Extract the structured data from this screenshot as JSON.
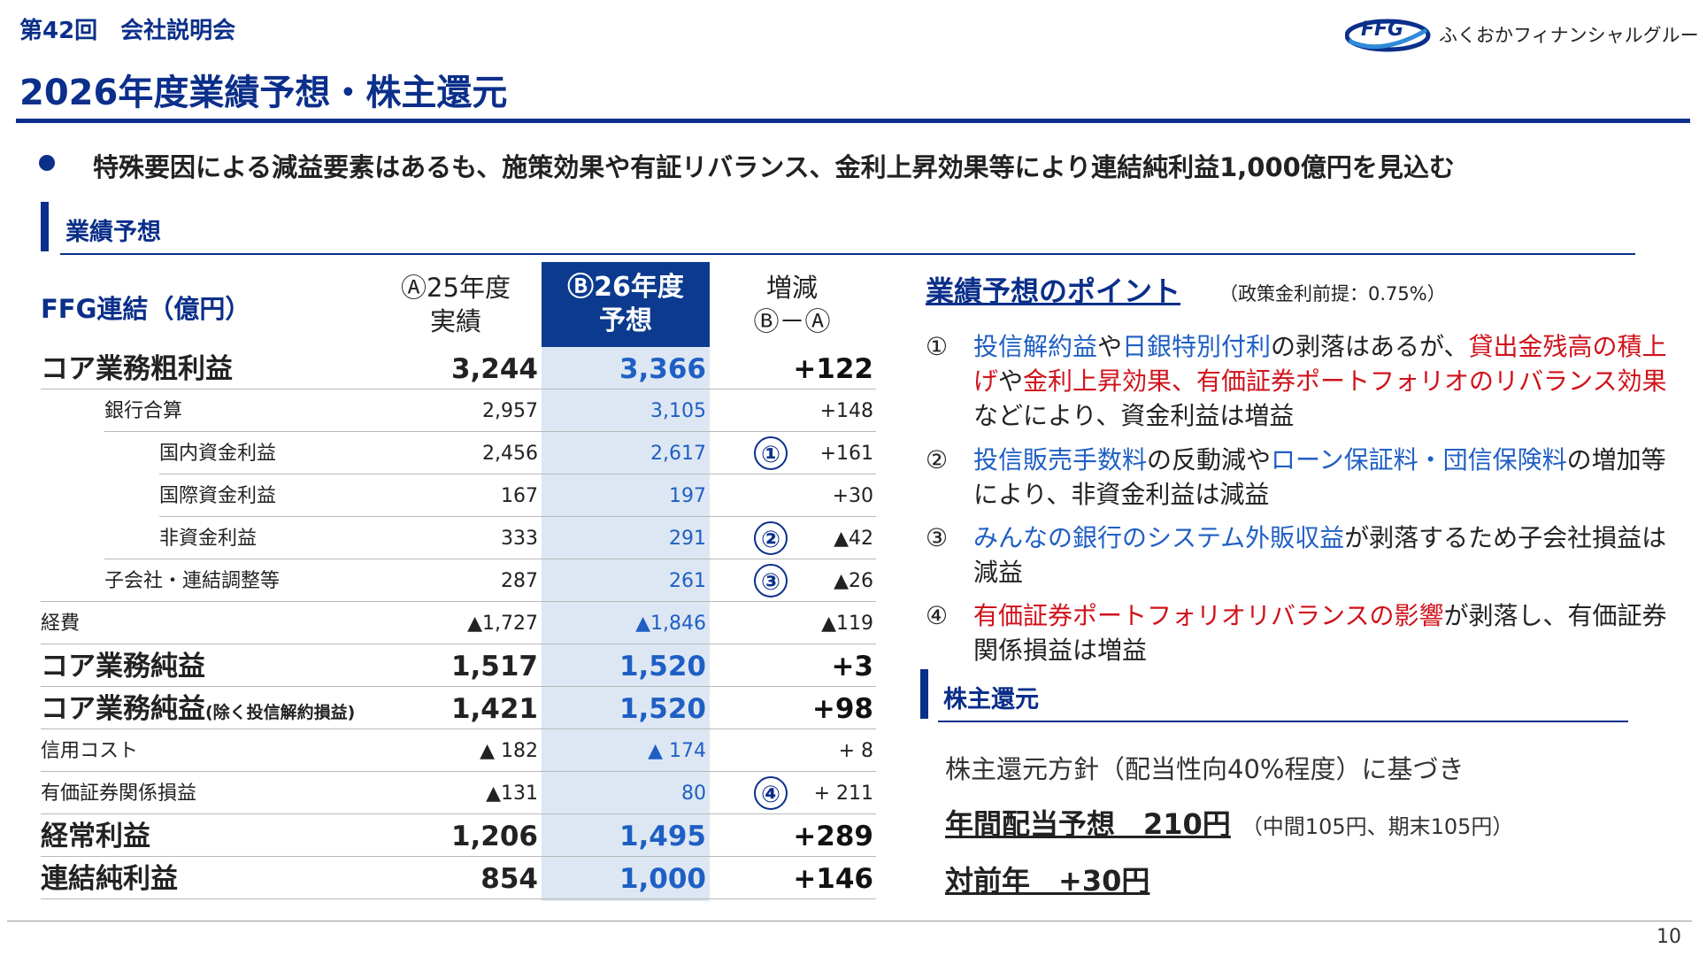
{
  "header": {
    "session": "第42回　会社説明会",
    "logo_text": "ふくおかフィナンシャルグループ",
    "logo_mark": "FFG",
    "title": "2026年度業績予想・株主還元"
  },
  "bullet": "特殊要因による減益要素はあるも、施策効果や有証リバランス、金利上昇効果等により連結純利益1,000億円を見込む",
  "forecast_section": {
    "title": "業績予想"
  },
  "table": {
    "unit_label": "FFG連結（億円）",
    "col_a": [
      "Ⓐ25年度",
      "実績"
    ],
    "col_b": [
      "Ⓑ26年度",
      "予想"
    ],
    "col_c": [
      "増減",
      "Ⓑ－Ⓐ"
    ],
    "rows": [
      {
        "label": "コア業務粗利益",
        "a": "3,244",
        "b": "3,366",
        "c": "+122"
      },
      {
        "label": "銀行合算",
        "a": "2,957",
        "b": "3,105",
        "c": "+148"
      },
      {
        "label": "国内資金利益",
        "a": "2,456",
        "b": "2,617",
        "c": "+161",
        "mark": "①"
      },
      {
        "label": "国際資金利益",
        "a": "167",
        "b": "197",
        "c": "+30"
      },
      {
        "label": "非資金利益",
        "a": "333",
        "b": "291",
        "c": "▲42",
        "mark": "②"
      },
      {
        "label": "子会社・連結調整等",
        "a": "287",
        "b": "261",
        "c": "▲26",
        "mark": "③"
      },
      {
        "label": "経費",
        "a": "▲1,727",
        "b": "▲1,846",
        "c": "▲119"
      },
      {
        "label": "コア業務純益",
        "a": "1,517",
        "b": "1,520",
        "c": "+3"
      },
      {
        "label": "コア業務純益",
        "label_note": "(除く投信解約損益)",
        "a": "1,421",
        "b": "1,520",
        "c": "+98"
      },
      {
        "label": "信用コスト",
        "a": "▲ 182",
        "b": "▲ 174",
        "c": "+ 8"
      },
      {
        "label": "有価証券関係損益",
        "a": "▲131",
        "b": "80",
        "c": "+ 211",
        "mark": "④"
      },
      {
        "label": "経常利益",
        "a": "1,206",
        "b": "1,495",
        "c": "+289"
      },
      {
        "label": "連結純利益",
        "a": "854",
        "b": "1,000",
        "c": "+146"
      }
    ]
  },
  "points": {
    "title": "業績予想のポイント",
    "note": "（政策金利前提：0.75%）",
    "items": [
      {
        "num": "①",
        "s1": "投信解約益",
        "s2": "や",
        "s3": "日銀特別付利",
        "s4": "の剥落はあるが、",
        "s5": "貸出金残高の積上げ",
        "s6": "や",
        "s7": "金利上昇効果、有価証券ポートフォリオのリバランス効果",
        "s8": "などにより、資金利益は増益"
      },
      {
        "num": "②",
        "s1": "投信販売手数料",
        "s2": "の反動減や",
        "s3": "ローン保証料・団信保険料",
        "s4": "の増加等により、非資金利益は減益"
      },
      {
        "num": "③",
        "s1": "みんなの銀行のシステム外販収益",
        "s2": "が剥落するため子会社損益は減益"
      },
      {
        "num": "④",
        "s1": "有価証券ポートフォリオリバランスの影響",
        "s2": "が剥落し、有価証券関係損益は増益"
      }
    ]
  },
  "shareholder": {
    "title": "株主還元",
    "policy": "株主還元方針（配当性向40%程度）に基づき",
    "dividend_label": "年間配当予想　210円",
    "dividend_note": "（中間105円、期末105円）",
    "yoy": "対前年　+30円"
  },
  "page_number": "10",
  "colors": {
    "navy": "#0b2f8a",
    "red": "#d0121b",
    "light_blue": "#1f5fc4",
    "band": "#dde7f3"
  }
}
